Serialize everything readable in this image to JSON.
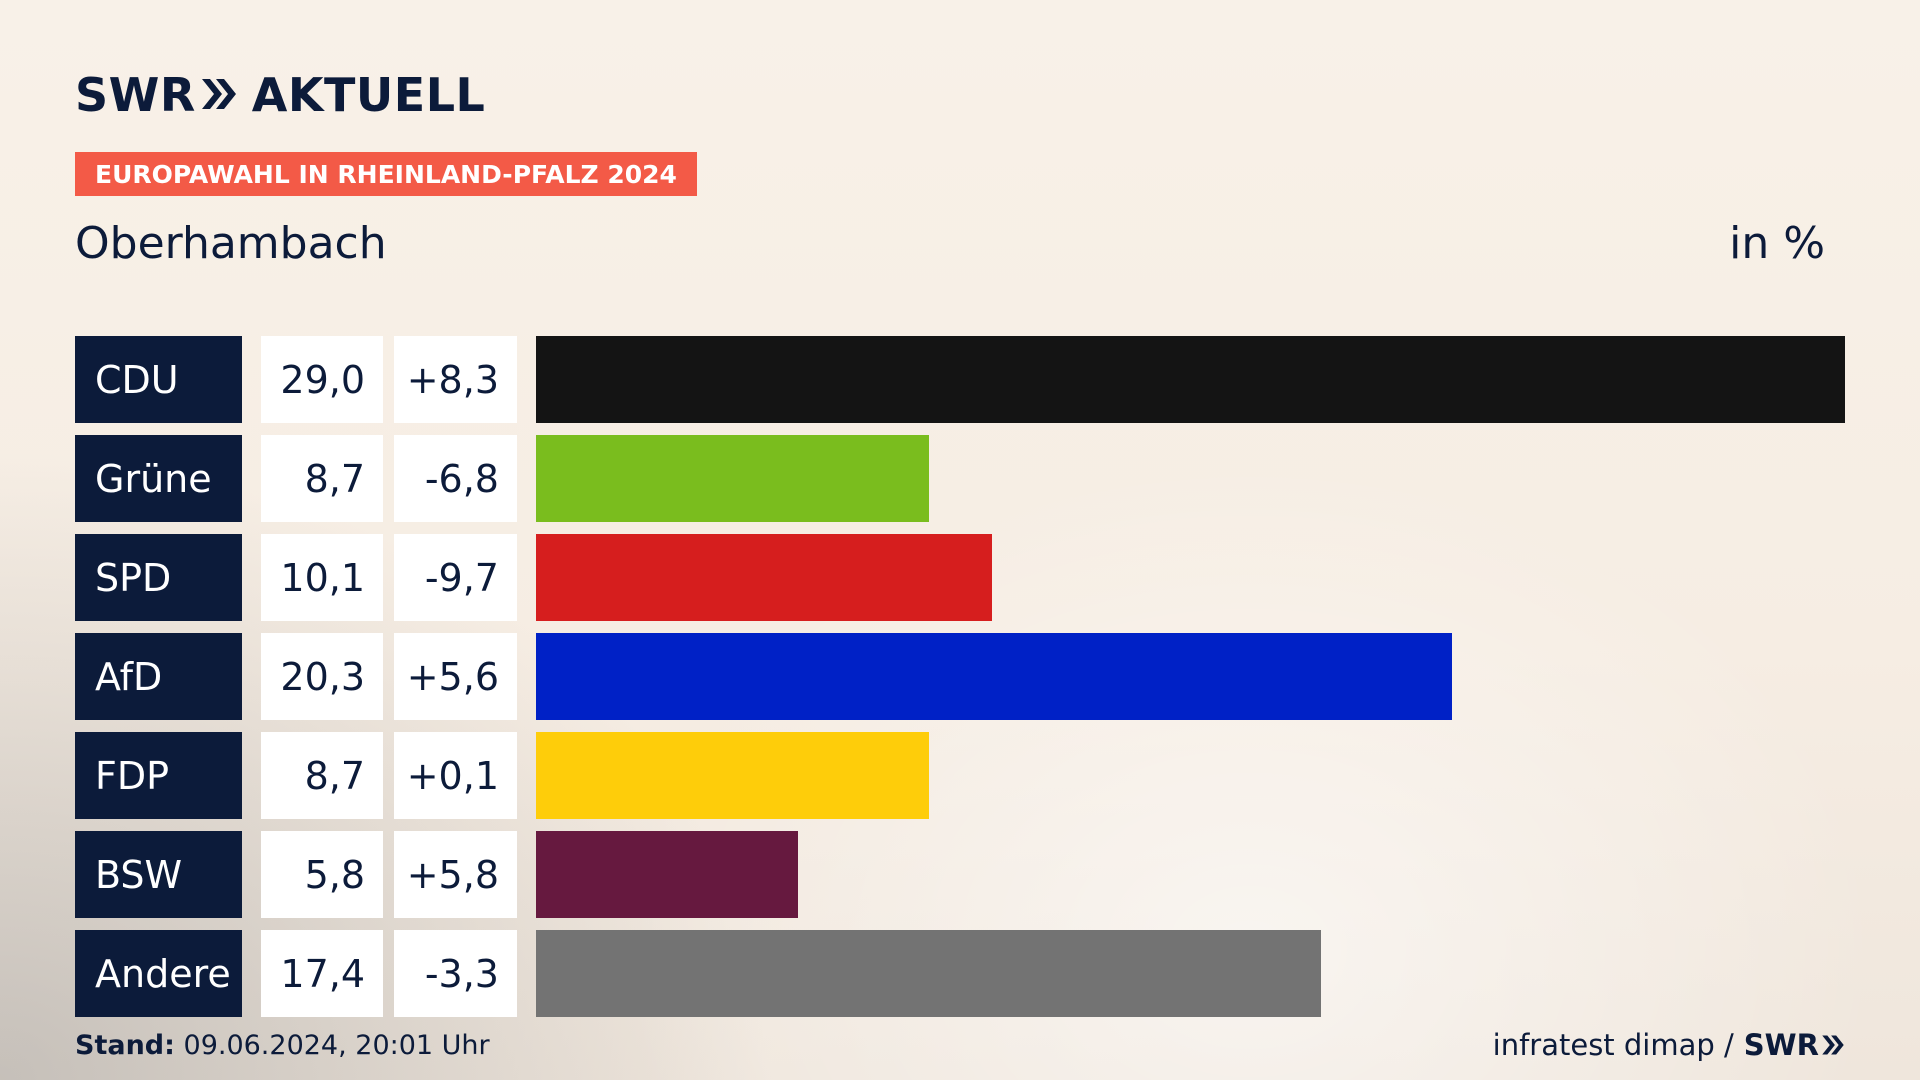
{
  "header": {
    "brand": "SWR",
    "brand_suffix": "AKTUELL",
    "badge": "EUROPAWAHL IN RHEINLAND-PFALZ 2024",
    "location": "Oberhambach",
    "unit": "in %"
  },
  "colors": {
    "navy": "#0c1b3a",
    "badge": "#f35a47"
  },
  "chart_data": {
    "type": "bar",
    "orientation": "horizontal",
    "title": "Oberhambach",
    "unit": "in %",
    "xlim": [
      0,
      29.0
    ],
    "categories": [
      "CDU",
      "Grüne",
      "SPD",
      "AfD",
      "FDP",
      "BSW",
      "Andere"
    ],
    "values": [
      29.0,
      8.7,
      10.1,
      20.3,
      8.7,
      5.8,
      17.4
    ],
    "value_labels": [
      "29,0",
      "8,7",
      "10,1",
      "20,3",
      "8,7",
      "5,8",
      "17,4"
    ],
    "diff_labels": [
      "+8,3",
      "-6,8",
      "-9,7",
      "+5,6",
      "+0,1",
      "+5,8",
      "-3,3"
    ],
    "diffs": [
      8.3,
      -6.8,
      -9.7,
      5.6,
      0.1,
      5.8,
      -3.3
    ],
    "bar_colors": [
      "#141414",
      "#7abd1e",
      "#d61e1e",
      "#0021c6",
      "#fecd0a",
      "#66193f",
      "#737373"
    ]
  },
  "footer": {
    "stand_label": "Stand:",
    "stand_value": "09.06.2024, 20:01 Uhr",
    "source": "infratest dimap /",
    "source_brand": "SWR"
  }
}
